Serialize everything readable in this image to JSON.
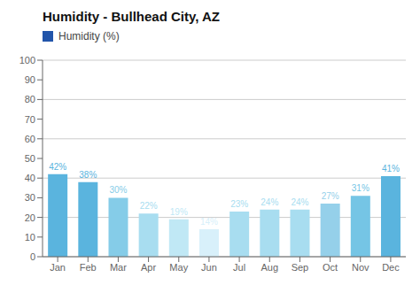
{
  "chart_data": {
    "type": "bar",
    "title": "Humidity - Bullhead City, AZ",
    "categories": [
      "Jan",
      "Feb",
      "Mar",
      "Apr",
      "May",
      "Jun",
      "Jul",
      "Aug",
      "Sep",
      "Oct",
      "Nov",
      "Dec"
    ],
    "series": [
      {
        "name": "Humidity (%)",
        "color": "#2255aa",
        "colors": [
          "#5ab4de",
          "#5ab4de",
          "#85cce8",
          "#a8ddf0",
          "#c0e8f5",
          "#d8f0fa",
          "#a8ddf0",
          "#a8ddf0",
          "#a8ddf0",
          "#95d0ea",
          "#75c5e5",
          "#5ab4de"
        ],
        "values": [
          42,
          38,
          30,
          22,
          19,
          14,
          23,
          24,
          24,
          27,
          31,
          41
        ],
        "value_labels": [
          "42%",
          "38%",
          "30%",
          "22%",
          "19%",
          "14%",
          "23%",
          "24%",
          "24%",
          "27%",
          "31%",
          "41%"
        ]
      }
    ],
    "ylim": [
      0,
      100
    ],
    "yticks": [
      0,
      10,
      20,
      30,
      40,
      50,
      60,
      70,
      80,
      90,
      100
    ],
    "grid": true,
    "legend": "upper left",
    "data_labels": true
  }
}
